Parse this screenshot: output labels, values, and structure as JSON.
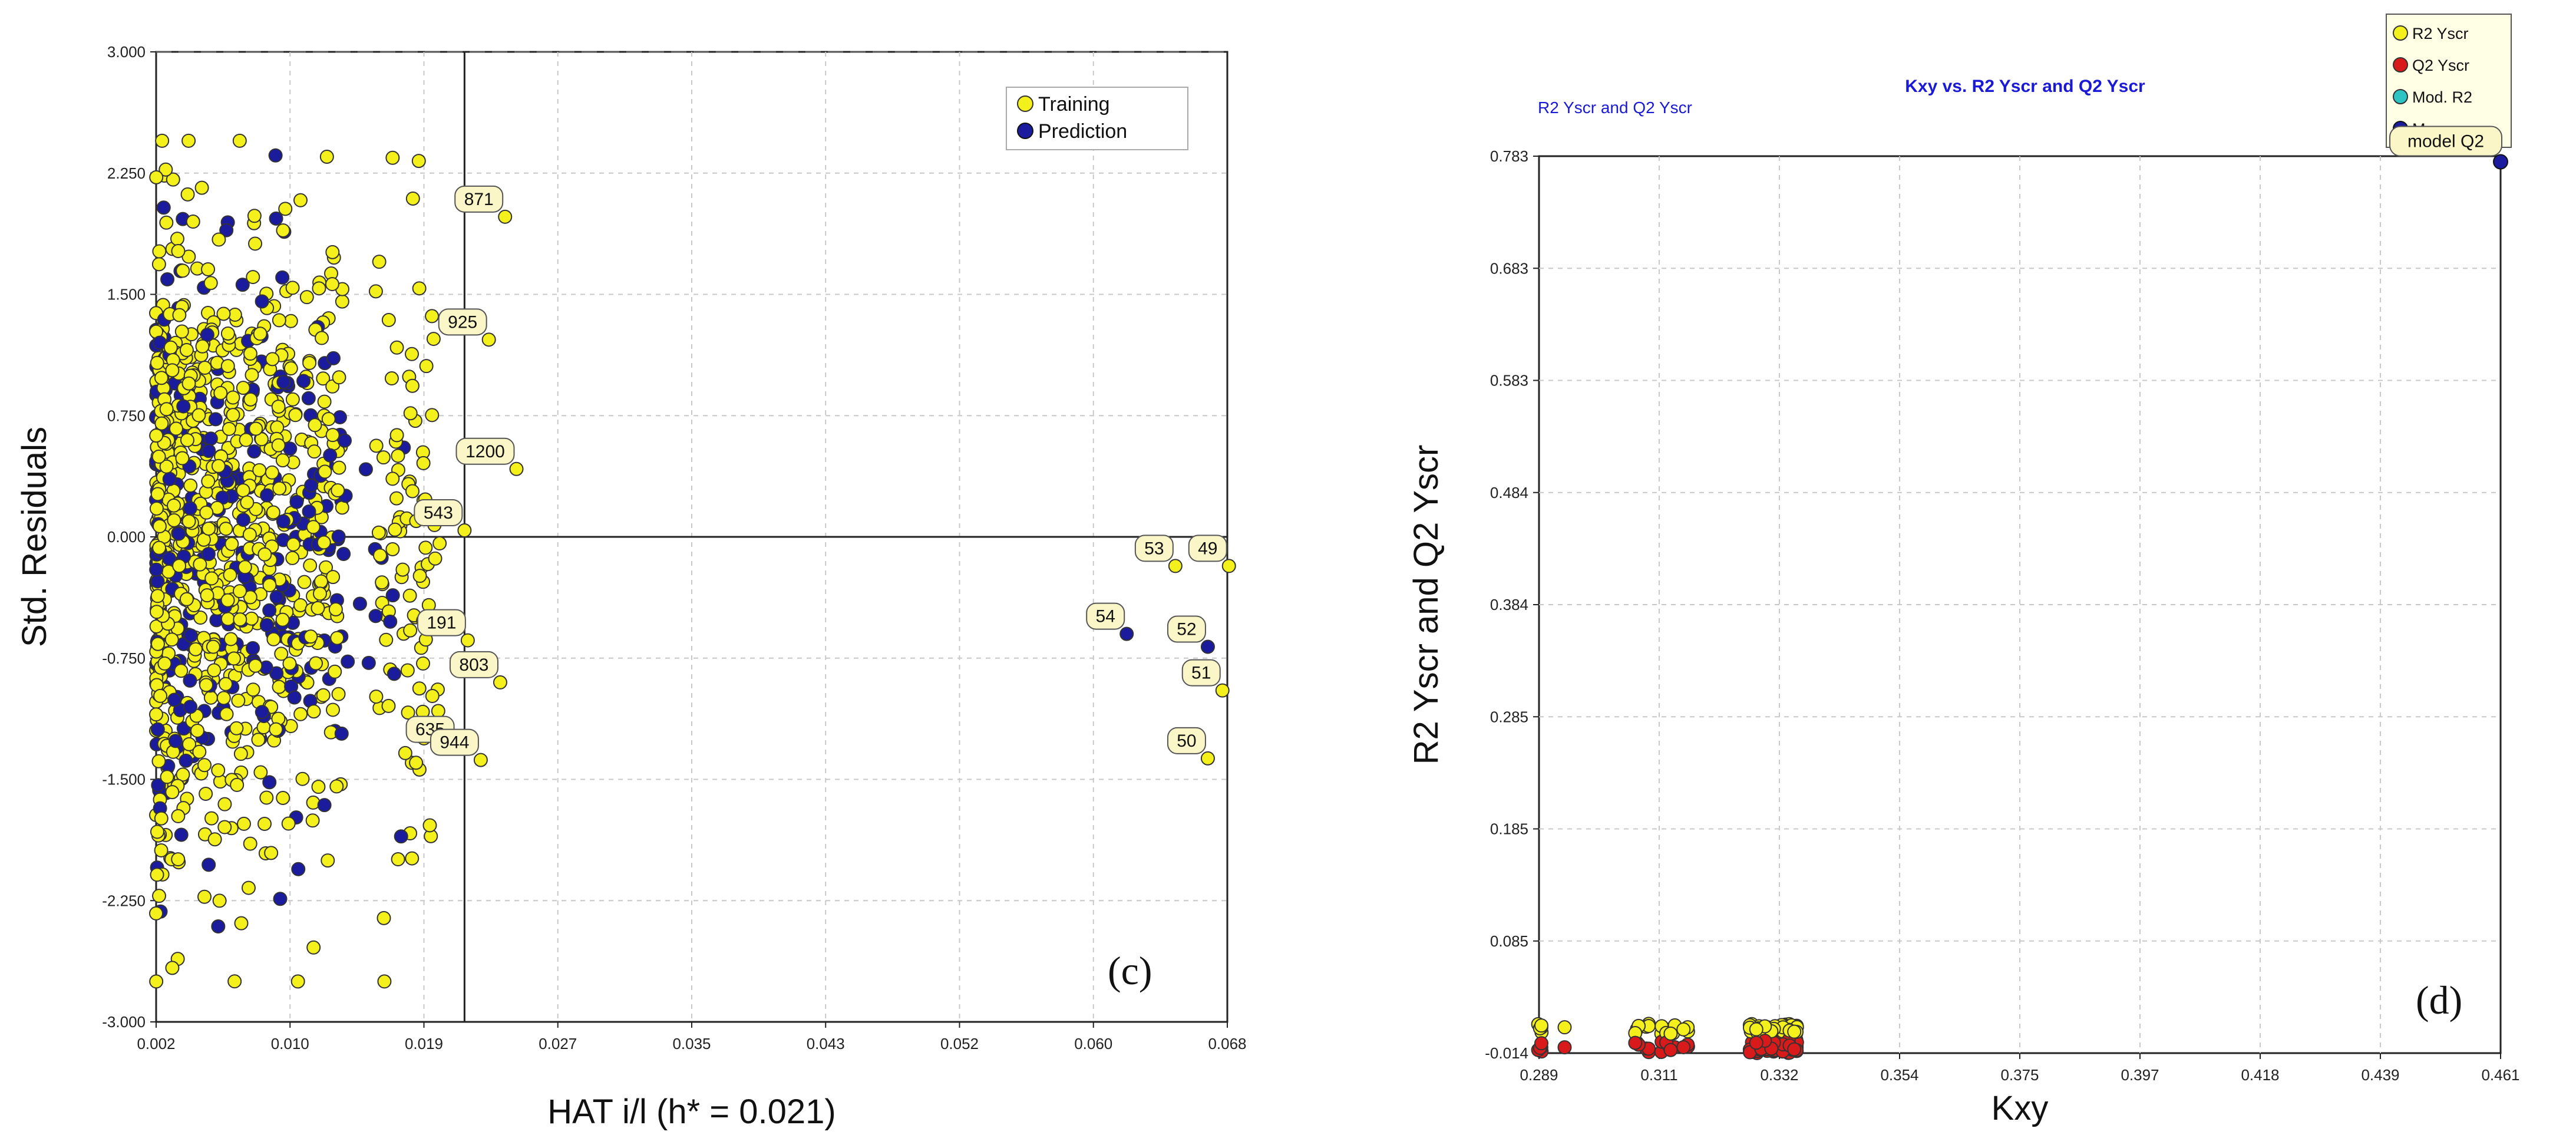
{
  "chart_data": [
    {
      "type": "scatter",
      "panel": "(c)",
      "xlabel": "HAT i/l (h* = 0.021)",
      "ylabel": "Std. Residuals",
      "xlim": [
        0.002,
        0.068
      ],
      "ylim": [
        -3.0,
        3.0
      ],
      "x_ticks": [
        "0.002",
        "0.010",
        "0.019",
        "0.027",
        "0.035",
        "0.043",
        "0.052",
        "0.060",
        "0.068"
      ],
      "y_ticks": [
        "3.000",
        "2.250",
        "1.500",
        "0.750",
        "0.000",
        "-0.750",
        "-1.500",
        "-2.250",
        "-3.000"
      ],
      "h_star": 0.021,
      "legend": [
        "Training",
        "Prediction"
      ],
      "series_colors": {
        "Training": "#f4f01c",
        "Prediction": "#1b1b9e"
      },
      "series": [
        {
          "name": "Training",
          "note": "dense cloud of points at low leverage (HAT ≈ 0.002–0.019), residuals ≈ -2.7 to 2.4",
          "n_points": 900
        },
        {
          "name": "Prediction",
          "note": "interspersed with training cloud",
          "n_points": 280
        }
      ],
      "labeled_points": [
        {
          "label": "871",
          "x": 0.0235,
          "y": 1.98,
          "series": "Training"
        },
        {
          "label": "925",
          "x": 0.0225,
          "y": 1.22,
          "series": "Training"
        },
        {
          "label": "1200",
          "x": 0.0242,
          "y": 0.42,
          "series": "Training"
        },
        {
          "label": "543",
          "x": 0.021,
          "y": 0.04,
          "series": "Training"
        },
        {
          "label": "53",
          "x": 0.0648,
          "y": -0.18,
          "series": "Training"
        },
        {
          "label": "49",
          "x": 0.0681,
          "y": -0.18,
          "series": "Training"
        },
        {
          "label": "191",
          "x": 0.0212,
          "y": -0.64,
          "series": "Training"
        },
        {
          "label": "54",
          "x": 0.0618,
          "y": -0.6,
          "series": "Prediction"
        },
        {
          "label": "52",
          "x": 0.0668,
          "y": -0.68,
          "series": "Prediction"
        },
        {
          "label": "803",
          "x": 0.0232,
          "y": -0.9,
          "series": "Training"
        },
        {
          "label": "51",
          "x": 0.0677,
          "y": -0.95,
          "series": "Training"
        },
        {
          "label": "635",
          "x": 0.0205,
          "y": -1.3,
          "series": "Training"
        },
        {
          "label": "944",
          "x": 0.022,
          "y": -1.38,
          "series": "Training"
        },
        {
          "label": "50",
          "x": 0.0668,
          "y": -1.37,
          "series": "Training"
        }
      ]
    },
    {
      "type": "scatter",
      "panel": "(d)",
      "title": "Kxy vs. R2 Yscr and Q2 Yscr",
      "subtitle": "R2 Yscr and Q2 Yscr",
      "xlabel": "Kxy",
      "ylabel": "R2 Yscr and Q2 Yscr",
      "xlim": [
        0.289,
        0.461
      ],
      "ylim": [
        -0.014,
        0.783
      ],
      "x_ticks": [
        "0.289",
        "0.311",
        "0.332",
        "0.354",
        "0.375",
        "0.397",
        "0.418",
        "0.439",
        "0.461"
      ],
      "y_ticks": [
        "0.783",
        "0.683",
        "0.583",
        "0.484",
        "0.384",
        "0.285",
        "0.185",
        "0.085",
        "-0.014"
      ],
      "legend": [
        "R2 Yscr",
        "Q2 Yscr",
        "Mod. R2",
        "Mod. Q2"
      ],
      "legend_visible_text": [
        "R2 Yscr",
        "Q2 Yscr",
        "Mod. R2",
        "Mo"
      ],
      "series_colors": {
        "R2 Yscr": "#f4f01c",
        "Q2 Yscr": "#d81a1a",
        "Mod. R2": "#2ec4c4",
        "Mod. Q2": "#1b1b9e"
      },
      "series": [
        {
          "name": "R2 Yscr",
          "note": "y-scrambled R2 values clustered near 0 (≈0.00–0.01) for Kxy 0.289–0.334",
          "n_points": 90
        },
        {
          "name": "Q2 Yscr",
          "note": "y-scrambled Q2 values near 0 (≈-0.014 to 0.00)",
          "n_points": 90
        },
        {
          "name": "Mod. Q2",
          "points": [
            {
              "x": 0.461,
              "y": 0.778
            }
          ]
        }
      ],
      "annotations": [
        {
          "text": "model Q2",
          "x": 0.461,
          "y": 0.778
        }
      ]
    }
  ]
}
